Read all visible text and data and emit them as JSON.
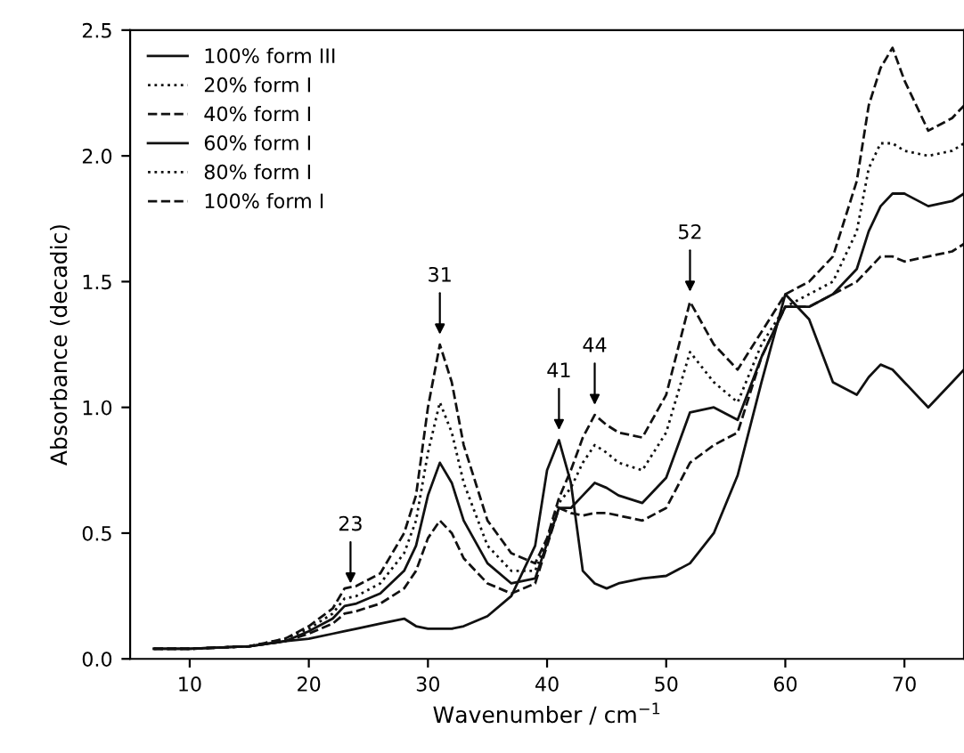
{
  "chart_data": {
    "type": "line",
    "xlabel": "Wavenumber / cm$^{−1}$",
    "ylabel": "Absorbance (decadic)",
    "x": [
      7,
      10,
      15,
      18,
      20,
      22,
      23,
      24,
      26,
      28,
      29,
      30,
      31,
      32,
      33,
      35,
      37,
      39,
      40,
      41,
      42,
      43,
      44,
      45,
      46,
      48,
      50,
      52,
      54,
      56,
      58,
      60,
      62,
      64,
      66,
      67,
      68,
      69,
      70,
      72,
      74,
      75
    ],
    "xlim": [
      5,
      75
    ],
    "ylim": [
      0,
      2.5
    ],
    "xticks": [
      10,
      20,
      30,
      40,
      50,
      60,
      70
    ],
    "yticks": [
      {
        "value": 0,
        "label": "0.0"
      },
      0.5,
      {
        "value": 1,
        "label": "1.0"
      },
      1.5,
      {
        "value": 2,
        "label": "2.0"
      },
      2.5
    ],
    "legend": "top left",
    "grid": false,
    "series": [
      {
        "name": "100% form III",
        "color": "#111111",
        "line_style": "solid",
        "values": [
          0.04,
          0.04,
          0.05,
          0.07,
          0.08,
          0.1,
          0.11,
          0.12,
          0.14,
          0.16,
          0.13,
          0.12,
          0.12,
          0.12,
          0.13,
          0.17,
          0.25,
          0.45,
          0.75,
          0.87,
          0.7,
          0.35,
          0.3,
          0.28,
          0.3,
          0.32,
          0.33,
          0.38,
          0.5,
          0.73,
          1.1,
          1.45,
          1.35,
          1.1,
          1.05,
          1.12,
          1.17,
          1.15,
          1.1,
          1.0,
          1.1,
          1.15
        ]
      },
      {
        "name": "20% form I",
        "color": "#111111",
        "line_style": "dotted",
        "values": [
          null,
          null,
          null,
          null,
          null,
          null,
          null,
          null,
          null,
          null,
          null,
          null,
          null,
          null,
          null,
          null,
          null,
          null,
          null,
          null,
          null,
          null,
          null,
          null,
          null,
          null,
          null,
          null,
          null,
          null,
          null,
          null,
          null,
          null,
          null,
          null,
          null,
          null,
          null,
          null,
          null,
          null
        ]
      },
      {
        "name": "40% form I",
        "color": "#111111",
        "line_style": "dashed",
        "values": [
          0.04,
          0.04,
          0.05,
          0.07,
          0.1,
          0.14,
          0.18,
          0.19,
          0.22,
          0.28,
          0.35,
          0.48,
          0.55,
          0.5,
          0.4,
          0.3,
          0.26,
          0.3,
          0.45,
          0.6,
          0.58,
          0.57,
          0.58,
          0.58,
          0.57,
          0.55,
          0.6,
          0.78,
          0.85,
          0.9,
          1.2,
          1.4,
          1.4,
          1.45,
          1.5,
          1.55,
          1.6,
          1.6,
          1.58,
          1.6,
          1.62,
          1.65
        ]
      },
      {
        "name": "60% form I",
        "color": "#111111",
        "line_style": "solid",
        "values": [
          0.04,
          0.04,
          0.05,
          0.07,
          0.11,
          0.16,
          0.21,
          0.22,
          0.26,
          0.35,
          0.45,
          0.65,
          0.78,
          0.7,
          0.55,
          0.38,
          0.3,
          0.32,
          0.46,
          0.6,
          0.6,
          0.65,
          0.7,
          0.68,
          0.65,
          0.62,
          0.72,
          0.98,
          1.0,
          0.95,
          1.2,
          1.4,
          1.4,
          1.45,
          1.55,
          1.7,
          1.8,
          1.85,
          1.85,
          1.8,
          1.82,
          1.85
        ]
      },
      {
        "name": "80% form I",
        "color": "#111111",
        "line_style": "dotted",
        "values": [
          0.04,
          0.04,
          0.05,
          0.08,
          0.12,
          0.18,
          0.24,
          0.25,
          0.3,
          0.42,
          0.55,
          0.82,
          1.02,
          0.9,
          0.7,
          0.45,
          0.35,
          0.35,
          0.47,
          0.62,
          0.68,
          0.78,
          0.85,
          0.82,
          0.78,
          0.75,
          0.9,
          1.22,
          1.1,
          1.02,
          1.25,
          1.4,
          1.45,
          1.5,
          1.7,
          1.95,
          2.05,
          2.05,
          2.02,
          2.0,
          2.02,
          2.05
        ]
      },
      {
        "name": "100% form I",
        "color": "#111111",
        "line_style": "dashed",
        "values": [
          0.04,
          0.04,
          0.05,
          0.08,
          0.13,
          0.2,
          0.28,
          0.29,
          0.34,
          0.5,
          0.65,
          1.0,
          1.25,
          1.1,
          0.85,
          0.55,
          0.42,
          0.38,
          0.48,
          0.64,
          0.75,
          0.88,
          0.97,
          0.93,
          0.9,
          0.88,
          1.05,
          1.42,
          1.25,
          1.15,
          1.3,
          1.45,
          1.5,
          1.6,
          1.9,
          2.2,
          2.35,
          2.43,
          2.3,
          2.1,
          2.15,
          2.2
        ]
      }
    ],
    "annotations": [
      {
        "text": "23",
        "x": 23.5,
        "y": 0.29
      },
      {
        "text": "31",
        "x": 31,
        "y": 1.28
      },
      {
        "text": "41",
        "x": 41,
        "y": 0.9
      },
      {
        "text": "44",
        "x": 44,
        "y": 1.0
      },
      {
        "text": "52",
        "x": 52,
        "y": 1.45
      }
    ]
  }
}
